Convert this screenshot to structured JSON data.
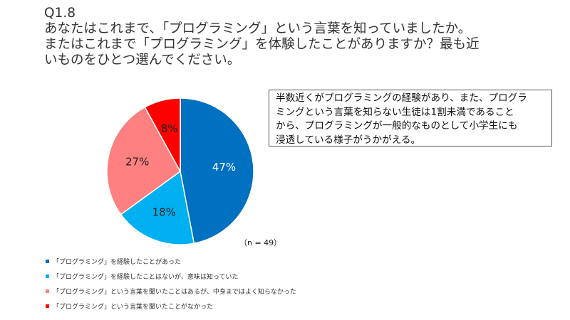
{
  "question": {
    "number": "Q1.8",
    "lines": [
      "あなたはこれまで、「プログラミング」という言葉を知っていましたか。",
      "またはこれまで「プログラミング」を体験したことがありますか？最も近",
      "いものをひとつ選んでください。"
    ]
  },
  "note": {
    "lines": [
      "半数近くがプログラミングの経験があり、また、プログラ",
      "ミングという言葉を知らない生徒は1割未満であること",
      "から、プログラミングが一般的なものとして小学生にも",
      "浸透している様子がうかがえる。"
    ]
  },
  "sample_size": "（n = 49）",
  "chart_data": {
    "type": "pie",
    "title": "",
    "categories": [
      "「プログラミング」を経験したことがあった",
      "「プログラミング」を経験したことはないが、意味は知っていた",
      "「プログラミング」という言葉を聞いたことはあるが、中身まではよく知らなかった",
      "「プログラミング」という言葉を聞いたことがなかった"
    ],
    "values": [
      47,
      18,
      27,
      8
    ],
    "labels": [
      "47%",
      "18%",
      "27%",
      "8%"
    ],
    "colors": [
      "#0070C0",
      "#00B0F0",
      "#FF8080",
      "#FF0000"
    ],
    "label_colors": [
      "#ffffff",
      "#222222",
      "#222222",
      "#222222"
    ],
    "start": "12 o'clock",
    "direction": "clockwise",
    "legend_position": "bottom-left"
  }
}
